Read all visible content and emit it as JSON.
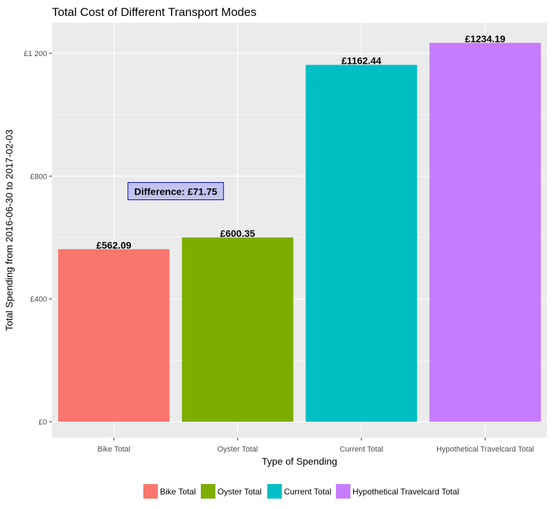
{
  "chart_data": {
    "type": "bar",
    "title": "Total Cost of Different Transport Modes",
    "xlabel": "Type of Spending",
    "ylabel": "Total Spending from 2016-06-30 to 2017-02-03",
    "categories": [
      "Bike Total",
      "Oyster Total",
      "Current Total",
      "Hypothetical Travelcard Total"
    ],
    "values": [
      562.09,
      600.35,
      1162.44,
      1234.19
    ],
    "value_labels": [
      "£562.09",
      "£600.35",
      "£1162.44",
      "£1234.19"
    ],
    "colors": [
      "#F8766D",
      "#7CAE00",
      "#00BFC4",
      "#C77CFF"
    ],
    "ylim": [
      0,
      1300
    ],
    "y_ticks": [
      0,
      400,
      800,
      1200
    ],
    "y_tick_labels": [
      "£0",
      "£400",
      "£800",
      "£1 200"
    ],
    "grid": true,
    "legend": {
      "position": "bottom",
      "entries": [
        "Bike Total",
        "Oyster Total",
        "Current Total",
        "Hypothetical Travelcard Total"
      ]
    },
    "annotation": {
      "text": "Difference: £71.75",
      "x_between": [
        0,
        1
      ],
      "y": 750
    }
  },
  "style": {
    "panel_bg": "#EBEBEB",
    "grid_major": "#FFFFFF",
    "annotation_fill": "#C3C3F0",
    "annotation_border": "#0000CC"
  }
}
